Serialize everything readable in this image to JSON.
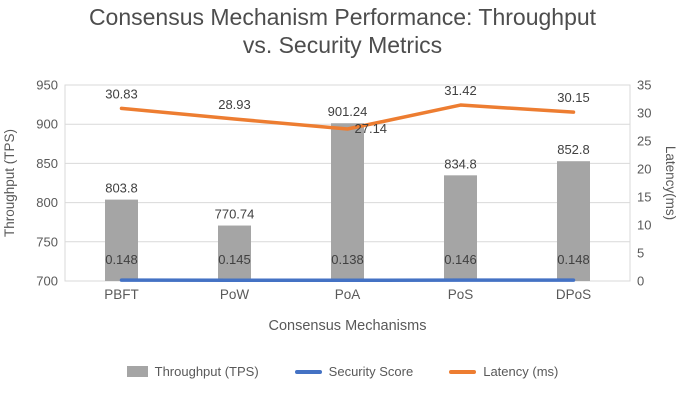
{
  "title_lines": [
    "Consensus Mechanism Performance: Throughput",
    "vs. Security Metrics"
  ],
  "chart_data": {
    "type": "combo-bar-line",
    "title": "Consensus Mechanism Performance: Throughput vs. Security Metrics",
    "categories": [
      "PBFT",
      "PoW",
      "PoA",
      "PoS",
      "DPoS"
    ],
    "series": [
      {
        "name": "Throughput (TPS)",
        "type": "bar",
        "axis": "left",
        "color": "#a5a5a5",
        "values": [
          803.8,
          770.74,
          901.24,
          834.8,
          852.8
        ]
      },
      {
        "name": "Security Score",
        "type": "line",
        "axis": "right",
        "color": "#4472c4",
        "values": [
          0.148,
          0.145,
          0.138,
          0.146,
          0.148
        ],
        "label_dy": -16
      },
      {
        "name": "Latency (ms)",
        "type": "line",
        "axis": "right",
        "color": "#ed7d31",
        "values": [
          30.83,
          28.93,
          27.14,
          31.42,
          30.15
        ],
        "label_dy": -10,
        "label_placement": [
          "above",
          "above",
          "right",
          "above",
          "above"
        ]
      }
    ],
    "xlabel": "Consensus Mechanisms",
    "ylabel_left": "Throughput (TPS)",
    "ylabel_right": "Latency(ms)",
    "ylim_left": [
      700,
      950
    ],
    "yticks_left": [
      700,
      750,
      800,
      850,
      900,
      950
    ],
    "ylim_right": [
      0,
      35
    ],
    "yticks_right": [
      0,
      5,
      10,
      15,
      20,
      25,
      30,
      35
    ],
    "grid": true,
    "legend_position": "bottom"
  }
}
